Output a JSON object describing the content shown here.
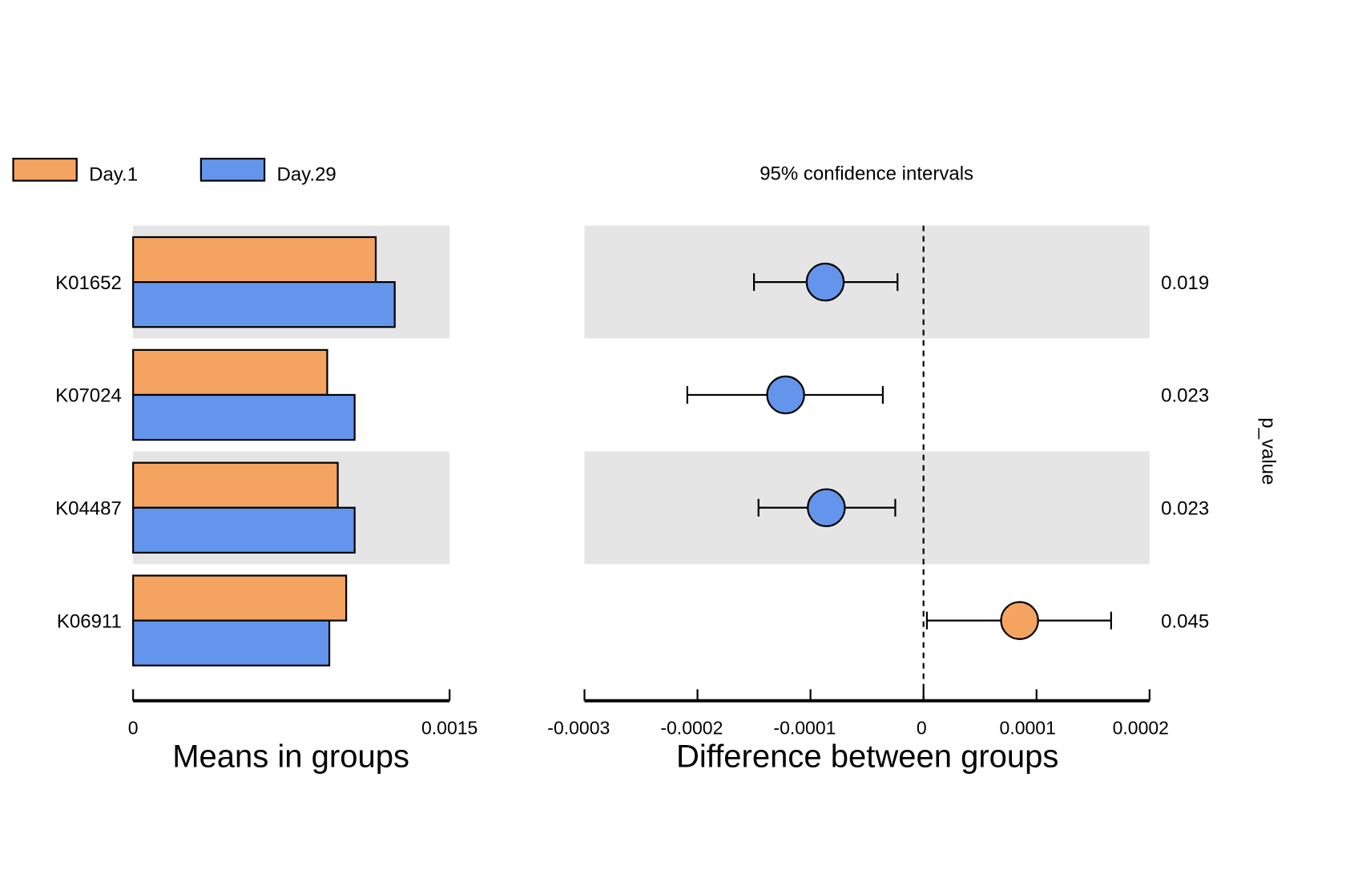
{
  "chart_data": [
    {
      "type": "bar",
      "orientation": "horizontal",
      "categories": [
        "K01652",
        "K07024",
        "K04487",
        "K06911"
      ],
      "series": [
        {
          "name": "Day.1",
          "color": "#F4A460",
          "values": [
            0.00115,
            0.00092,
            0.00097,
            0.00101
          ]
        },
        {
          "name": "Day.29",
          "color": "#6495ED",
          "values": [
            0.00124,
            0.00105,
            0.00105,
            0.00093
          ]
        }
      ],
      "xlim": [
        0,
        0.0015
      ],
      "xticks": [
        "0",
        "0.0015"
      ],
      "xlabel": "Means in groups",
      "legend_position": "top-left"
    },
    {
      "type": "scatter",
      "subtype": "error-bar",
      "title": "95% confidence intervals",
      "categories": [
        "K01652",
        "K07024",
        "K04487",
        "K06911"
      ],
      "points": [
        {
          "category": "K01652",
          "estimate": -8.7e-05,
          "ci_low": -0.00015,
          "ci_high": -2.3e-05,
          "group": "Day.29",
          "color": "#6495ED"
        },
        {
          "category": "K07024",
          "estimate": -0.000122,
          "ci_low": -0.000209,
          "ci_high": -3.6e-05,
          "group": "Day.29",
          "color": "#6495ED"
        },
        {
          "category": "K04487",
          "estimate": -8.6e-05,
          "ci_low": -0.000146,
          "ci_high": -2.5e-05,
          "group": "Day.29",
          "color": "#6495ED"
        },
        {
          "category": "K06911",
          "estimate": 8.5e-05,
          "ci_low": 3e-06,
          "ci_high": 0.000166,
          "group": "Day.1",
          "color": "#F4A460"
        }
      ],
      "xlim": [
        -0.0003,
        0.0002
      ],
      "xticks": [
        -0.0003,
        -0.0002,
        -0.0001,
        0,
        0.0001,
        0.0002
      ],
      "xtick_labels": [
        "-0.0003",
        "-0.0002",
        "-0.0001",
        "0",
        "0.0001",
        "0.0002"
      ],
      "xlabel": "Difference between groups",
      "reference_line": 0,
      "p_values": [
        "0.019",
        "0.023",
        "0.023",
        "0.045"
      ],
      "p_value_label": "p_value"
    }
  ],
  "legend": [
    {
      "label": "Day.1",
      "color": "#F4A460"
    },
    {
      "label": "Day.29",
      "color": "#6495ED"
    }
  ],
  "colors": {
    "band": "#E5E5E5",
    "axis": "#000000"
  }
}
